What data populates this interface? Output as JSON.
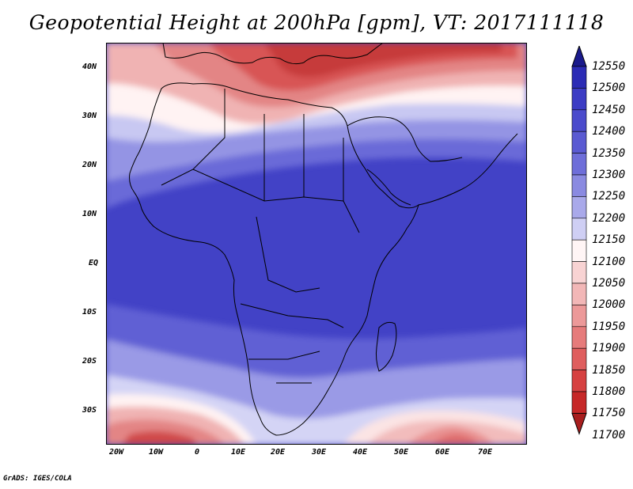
{
  "title": "Geopotential Height at 200hPa [gpm], VT: 2017111118",
  "credit": "GrADS: IGES/COLA",
  "map": {
    "region": "Africa",
    "lon_range": [
      -25,
      80
    ],
    "lat_range": [
      -37,
      45
    ],
    "field_pattern": "high heights (blue) over tropics, low heights (red) over Mediterranean/North Africa and southern ocean"
  },
  "lon_labels": [
    "20W",
    "10W",
    "0",
    "10E",
    "20E",
    "30E",
    "40E",
    "50E",
    "60E",
    "70E"
  ],
  "lat_labels": [
    "40N",
    "30N",
    "20N",
    "10N",
    "EQ",
    "10S",
    "20S",
    "30S"
  ],
  "colorbar": {
    "labels": [
      "12550",
      "12500",
      "12450",
      "12400",
      "12350",
      "12300",
      "12250",
      "12200",
      "12150",
      "12100",
      "12050",
      "12000",
      "11950",
      "11900",
      "11850",
      "11800",
      "11750",
      "11700"
    ],
    "colors": [
      "#1a1a8c",
      "#2b2bb5",
      "#3c3cc4",
      "#4b4bcc",
      "#5a5ad2",
      "#6e6ed9",
      "#8a8ae1",
      "#a9a9ea",
      "#cfcff4",
      "#fff5f5",
      "#f8d3d3",
      "#f2b7b7",
      "#ec9999",
      "#e67b7b",
      "#df5e5e",
      "#d64141",
      "#c62828",
      "#a81e1e"
    ]
  }
}
